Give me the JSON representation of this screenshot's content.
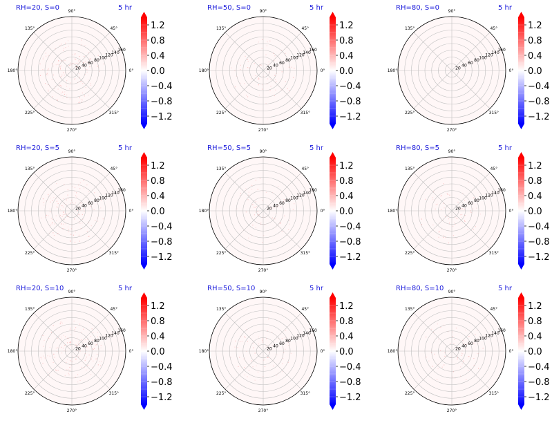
{
  "chart_data": {
    "type": "polar-heatmap-grid",
    "time_label": "5 hr",
    "title_color": "#1a1adb",
    "panels": [
      {
        "title": "RH=20, S=0",
        "rh": 20,
        "s": 0,
        "pattern": "diffuse"
      },
      {
        "title": "RH=50, S=0",
        "rh": 50,
        "s": 0,
        "pattern": "faint"
      },
      {
        "title": "RH=80, S=0",
        "rh": 80,
        "s": 0,
        "pattern": "none"
      },
      {
        "title": "RH=20, S=5",
        "rh": 20,
        "s": 5,
        "pattern": "diffuse"
      },
      {
        "title": "RH=50, S=5",
        "rh": 50,
        "s": 5,
        "pattern": "faint"
      },
      {
        "title": "RH=80, S=5",
        "rh": 80,
        "s": 5,
        "pattern": "faint"
      },
      {
        "title": "RH=20, S=10",
        "rh": 20,
        "s": 10,
        "pattern": "diffuse"
      },
      {
        "title": "RH=50, S=10",
        "rh": 50,
        "s": 10,
        "pattern": "faint"
      },
      {
        "title": "RH=80, S=10",
        "rh": 80,
        "s": 10,
        "pattern": "faint"
      }
    ],
    "angle_ticks": [
      "0°",
      "45°",
      "90°",
      "135°",
      "180°",
      "225°",
      "270°",
      "315°"
    ],
    "radial_ticks": [
      20,
      40,
      60,
      80,
      100,
      120,
      140,
      160
    ],
    "r_max": 160,
    "colorbar": {
      "cmap": "bwr",
      "vmin": -1.4,
      "vmax": 1.4,
      "ticks": [
        "1.2",
        "0.8",
        "0.4",
        "0.0",
        "−0.4",
        "−0.8",
        "−1.2"
      ],
      "tick_values": [
        1.2,
        0.8,
        0.4,
        0.0,
        -0.4,
        -0.8,
        -1.2
      ],
      "colors": {
        "high": "#ff0000",
        "mid": "#ffffff",
        "low": "#0000ff"
      }
    },
    "grid": true
  }
}
